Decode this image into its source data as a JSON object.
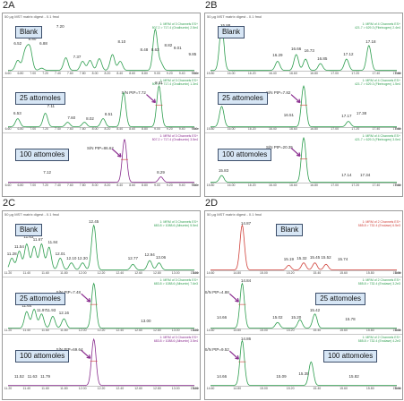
{
  "colors": {
    "green": "#2e9e4f",
    "red": "#d0413a",
    "purple": "#8a2d8f",
    "blue_box": "#d7e6f5"
  },
  "chart_data": [
    {
      "type": "line",
      "panel_label": "2A",
      "title": "50 µg MST matrix digest - 0.1 fmol",
      "x_range": [
        0,
        10
      ],
      "traces": [
        {
          "sample": "Blank",
          "color": "green",
          "corner": [
            "1: MRM of 3 Channels ES+",
            "507.2 > 717.4 (Ovalbumin) 2.5e4"
          ],
          "peaks": [
            [
              0.52,
              0.22
            ],
            [
              0.88,
              0.3
            ],
            [
              1.04,
              0.28
            ],
            [
              1.2,
              0.38
            ],
            [
              1.8,
              0.05
            ],
            [
              3.1,
              0.28
            ],
            [
              4.0,
              0.2
            ],
            [
              4.4,
              0.22
            ],
            [
              4.9,
              0.26
            ],
            [
              5.6,
              0.35
            ],
            [
              6.02,
              0.2
            ],
            [
              7.9,
              0.9
            ],
            [
              8.2,
              0.16
            ]
          ],
          "labels": [
            [
              "6.52",
              0.52,
              0.55
            ],
            [
              "6.80",
              1.3,
              0.65
            ],
            [
              "6.88",
              1.9,
              0.55
            ],
            [
              "7.20",
              2.8,
              0.92
            ],
            [
              "7.37",
              3.7,
              0.25
            ],
            [
              "8.10",
              6.1,
              0.58
            ],
            [
              "8.48",
              7.3,
              0.4
            ],
            [
              "8.63",
              7.9,
              0.4
            ],
            [
              "8.82",
              8.6,
              0.5
            ],
            [
              "9.01",
              9.1,
              0.45
            ],
            [
              "9.85",
              9.9,
              0.3
            ]
          ],
          "sn": ""
        },
        {
          "sample": "25 attomoles",
          "color": "green",
          "corner": [
            "1: MRM of 3 Channels ES+",
            "507.2 > 717.4 (Ovalbumin) 1.3e4"
          ],
          "peaks": [
            [
              0.52,
              0.18
            ],
            [
              2.0,
              0.3
            ],
            [
              3.2,
              0.1
            ],
            [
              4.1,
              0.1
            ],
            [
              5.1,
              0.18
            ],
            [
              6.2,
              0.75
            ],
            [
              8.1,
              0.9
            ]
          ],
          "labels": [
            [
              "6.53",
              0.5,
              0.25
            ],
            [
              "7.11",
              2.3,
              0.4
            ],
            [
              "7.60",
              3.4,
              0.15
            ],
            [
              "8.02",
              4.4,
              0.12
            ],
            [
              "8.51",
              5.4,
              0.22
            ],
            [
              "8.31",
              8.1,
              0.92
            ]
          ],
          "sn": "S/N PtP=7.72"
        },
        {
          "sample": "100 attomoles",
          "color": "purple",
          "corner": [
            "1: MRM of 3 Channels ES+",
            "507.2 > 717.4 (Ovalbumin) 3.5e4"
          ],
          "peaks": [
            [
              6.25,
              0.95
            ],
            [
              8.2,
              0.12
            ]
          ],
          "labels": [
            [
              "7.12",
              2.1,
              0.18
            ],
            [
              "8.29",
              8.2,
              0.18
            ]
          ],
          "sn": "S/N PtP=86.62"
        }
      ],
      "x_ticks": [
        "6.60",
        "6.80",
        "7.00",
        "7.20",
        "7.40",
        "7.60",
        "7.80",
        "8.00",
        "8.20",
        "8.40",
        "8.60",
        "8.80",
        "9.00",
        "9.20",
        "9.40",
        "9.60"
      ]
    },
    {
      "type": "line",
      "panel_label": "2B",
      "title": "50 µg MST matrix digest - 0.1 fmol",
      "x_range": [
        0,
        10
      ],
      "traces": [
        {
          "sample": "Blank",
          "color": "green",
          "corner": [
            "1: MRM of 4 Channels ES+",
            "421.7 > 629.3 (Fibrinogen) 2.4e4"
          ],
          "peaks": [
            [
              0.6,
              0.98
            ],
            [
              3.6,
              0.2
            ],
            [
              4.6,
              0.35
            ],
            [
              5.1,
              0.25
            ],
            [
              5.9,
              0.15
            ],
            [
              7.3,
              0.25
            ],
            [
              8.5,
              0.55
            ]
          ],
          "labels": [
            [
              "15.88",
              0.8,
              0.95
            ],
            [
              "16.29",
              3.6,
              0.28
            ],
            [
              "16.66",
              4.6,
              0.42
            ],
            [
              "16.73",
              5.3,
              0.38
            ],
            [
              "16.85",
              6.0,
              0.22
            ],
            [
              "17.12",
              7.4,
              0.3
            ],
            [
              "17.18",
              8.6,
              0.58
            ]
          ],
          "sn": ""
        },
        {
          "sample": "25 attomoles",
          "color": "green",
          "corner": [
            "1: MRM of 4 Channels ES+",
            "421.7 > 629.3 (Fibrinogen) 1.5e4"
          ],
          "peaks": [
            [
              0.6,
              0.45
            ],
            [
              5.0,
              0.9
            ],
            [
              7.4,
              0.12
            ]
          ],
          "labels": [
            [
              "15.83",
              0.7,
              0.55
            ],
            [
              "16.51",
              4.2,
              0.2
            ],
            [
              "17.17",
              7.3,
              0.18
            ],
            [
              "17.38",
              8.1,
              0.25
            ]
          ],
          "sn": "S/N PtP=7.82"
        },
        {
          "sample": "100 attomoles",
          "color": "green",
          "corner": [
            "1: MRM of 4 Channels ES+",
            "421.7 > 629.3 (Fibrinogen) 3.0e4"
          ],
          "peaks": [
            [
              0.6,
              0.15
            ],
            [
              5.0,
              0.98
            ]
          ],
          "labels": [
            [
              "15.83",
              0.7,
              0.22
            ],
            [
              "17.14",
              7.3,
              0.12
            ],
            [
              "17.34",
              8.3,
              0.12
            ]
          ],
          "sn": "S/N PtP=20.35"
        }
      ],
      "x_ticks": [
        "15.80",
        "16.00",
        "16.20",
        "16.40",
        "16.60",
        "16.80",
        "17.00",
        "17.20",
        "17.40",
        "17.60"
      ]
    },
    {
      "type": "line",
      "panel_label": "2C",
      "title": "50 µg MST matrix digest - 0.1 fmol",
      "x_range": [
        0,
        10
      ],
      "traces": [
        {
          "sample": "Blank",
          "color": "green",
          "corner": [
            "1: MRM of 3 Channels ES+",
            "683.8 > 1088.6 (Albumin) 5.5e4"
          ],
          "peaks": [
            [
              0.2,
              0.25
            ],
            [
              0.6,
              0.4
            ],
            [
              1.0,
              0.55
            ],
            [
              1.4,
              0.5
            ],
            [
              1.8,
              0.55
            ],
            [
              2.2,
              0.48
            ],
            [
              2.8,
              0.25
            ],
            [
              3.4,
              0.15
            ],
            [
              4.0,
              0.15
            ],
            [
              4.6,
              0.95
            ],
            [
              6.7,
              0.12
            ],
            [
              7.6,
              0.2
            ],
            [
              8.1,
              0.15
            ]
          ],
          "labels": [
            [
              "11.28",
              0.2,
              0.3
            ],
            [
              "11.54",
              0.6,
              0.45
            ],
            [
              "11.63",
              1.1,
              0.65
            ],
            [
              "11.67",
              1.6,
              0.6
            ],
            [
              "11.84",
              2.4,
              0.55
            ],
            [
              "12.01",
              2.8,
              0.3
            ],
            [
              "12.10",
              3.4,
              0.2
            ],
            [
              "12.30",
              4.0,
              0.2
            ],
            [
              "12.45",
              4.6,
              0.98
            ],
            [
              "12.77",
              6.7,
              0.2
            ],
            [
              "12.94",
              7.6,
              0.28
            ],
            [
              "13.06",
              8.2,
              0.22
            ]
          ],
          "sn": ""
        },
        {
          "sample": "25 attomoles",
          "color": "green",
          "corner": [
            "1: MRM of 3 Channels ES+",
            "683.8 > 1088.6 (Albumin) 7.6e3"
          ],
          "peaks": [
            [
              1.0,
              0.35
            ],
            [
              1.4,
              0.4
            ],
            [
              1.8,
              0.3
            ],
            [
              2.4,
              0.25
            ],
            [
              3.0,
              0.2
            ],
            [
              4.6,
              0.95
            ]
          ],
          "labels": [
            [
              "11.64",
              1.0,
              0.42
            ],
            [
              "11.72",
              1.4,
              0.55
            ],
            [
              "11.97",
              1.8,
              0.32
            ],
            [
              "11.93",
              2.3,
              0.32
            ],
            [
              "12.16",
              3.0,
              0.28
            ],
            [
              "13.00",
              7.4,
              0.1
            ]
          ],
          "sn": "S/N PtP=7.48"
        },
        {
          "sample": "100 attomoles",
          "color": "purple",
          "corner": [
            "1: MRM of 3 Channels ES+",
            "683.8 > 1088.6 (Albumin) 3.5e4"
          ],
          "peaks": [
            [
              4.6,
              0.98
            ]
          ],
          "labels": [
            [
              "11.52",
              0.6,
              0.15
            ],
            [
              "11.63",
              1.3,
              0.15
            ],
            [
              "11.79",
              2.0,
              0.15
            ]
          ],
          "sn": "S/N PtP=69.64"
        }
      ],
      "x_ticks": [
        "11.20",
        "11.40",
        "11.60",
        "11.80",
        "12.00",
        "12.20",
        "12.40",
        "12.60",
        "12.80",
        "13.00",
        "13.20"
      ]
    },
    {
      "type": "line",
      "panel_label": "2D",
      "title": "50 µg MST matrix digest - 0.1 fmol",
      "x_range": [
        0,
        10
      ],
      "traces": [
        {
          "sample": "Blank",
          "color": "red",
          "corner": [
            "1: MRM of 2 Channels ES+",
            "585.8 > 732.4 (Enolase) 6.5e3"
          ],
          "peaks": [
            [
              1.7,
              0.95
            ],
            [
              4.2,
              0.1
            ],
            [
              5.0,
              0.15
            ],
            [
              5.6,
              0.15
            ],
            [
              6.2,
              0.12
            ]
          ],
          "labels": [
            [
              "14.87",
              1.9,
              0.95
            ],
            [
              "15.19",
              4.2,
              0.18
            ],
            [
              "15.32",
              4.9,
              0.2
            ],
            [
              "15.45",
              5.6,
              0.22
            ],
            [
              "15.52",
              6.2,
              0.22
            ],
            [
              "15.74",
              7.1,
              0.18
            ]
          ],
          "sn": ""
        },
        {
          "sample": "25 attomoles",
          "color": "green",
          "corner": [
            "1: MRM of 2 Channels ES+",
            "585.8 > 732.4 (Enolase) 3.2e3"
          ],
          "peaks": [
            [
              1.7,
              0.95
            ],
            [
              3.6,
              0.12
            ],
            [
              4.8,
              0.18
            ],
            [
              5.6,
              0.3
            ]
          ],
          "labels": [
            [
              "14.84",
              1.9,
              0.95
            ],
            [
              "14.66",
              0.6,
              0.18
            ],
            [
              "15.02",
              3.6,
              0.18
            ],
            [
              "15.20",
              4.6,
              0.18
            ],
            [
              "15.42",
              5.6,
              0.32
            ],
            [
              "15.78",
              7.5,
              0.14
            ]
          ],
          "sn": "S/N PtP=4.88"
        },
        {
          "sample": "100 attomoles",
          "color": "green",
          "corner": [
            "1: MRM of 2 Channels ES+",
            "585.8 > 732.4 (Enolase) 4.2e3"
          ],
          "peaks": [
            [
              1.7,
              0.95
            ],
            [
              5.4,
              0.5
            ]
          ],
          "labels": [
            [
              "14.86",
              1.9,
              0.95
            ],
            [
              "14.66",
              0.6,
              0.15
            ],
            [
              "15.09",
              3.8,
              0.15
            ],
            [
              "15.35",
              5.0,
              0.2
            ],
            [
              "15.82",
              7.7,
              0.15
            ]
          ],
          "sn": "S/N PtP=9.52"
        }
      ],
      "x_ticks": [
        "14.60",
        "14.80",
        "15.00",
        "15.20",
        "15.40",
        "15.60",
        "15.80",
        "16.00"
      ]
    }
  ],
  "time_axis_label": "Time"
}
